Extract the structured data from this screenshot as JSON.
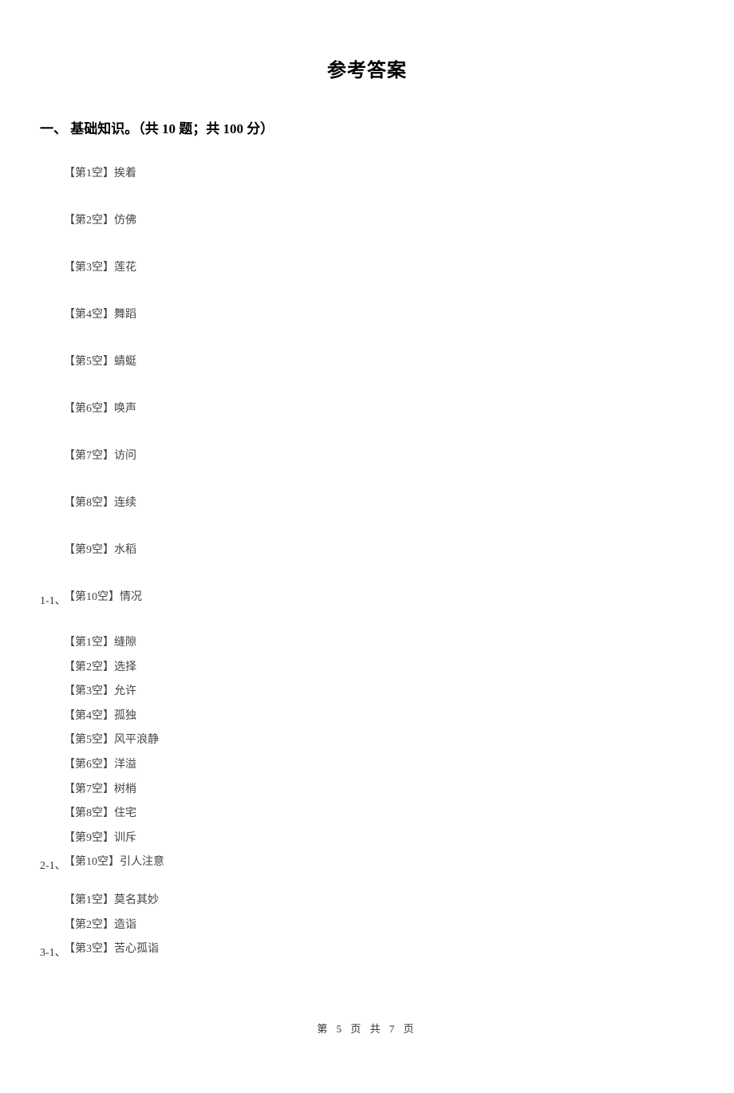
{
  "title": "参考答案",
  "section_header": "一、 基础知识。（共 10 题；共 100 分）",
  "group1": {
    "label": "1-1、",
    "items": [
      "【第1空】挨着",
      "【第2空】仿佛",
      "【第3空】莲花",
      "【第4空】舞蹈",
      "【第5空】蜻蜓",
      "【第6空】唤声",
      "【第7空】访问",
      "【第8空】连续",
      "【第9空】水稻",
      "【第10空】情况"
    ]
  },
  "group2": {
    "label": "2-1、",
    "items": [
      "【第1空】缝隙",
      "【第2空】选择",
      "【第3空】允许",
      "【第4空】孤独",
      "【第5空】风平浪静",
      "【第6空】洋溢",
      "【第7空】树梢",
      "【第8空】住宅",
      "【第9空】训斥",
      "【第10空】引人注意"
    ]
  },
  "group3": {
    "label": "3-1、",
    "items": [
      "【第1空】莫名其妙",
      "【第2空】造诣",
      "【第3空】苦心孤诣"
    ]
  },
  "footer": "第 5 页 共 7 页"
}
